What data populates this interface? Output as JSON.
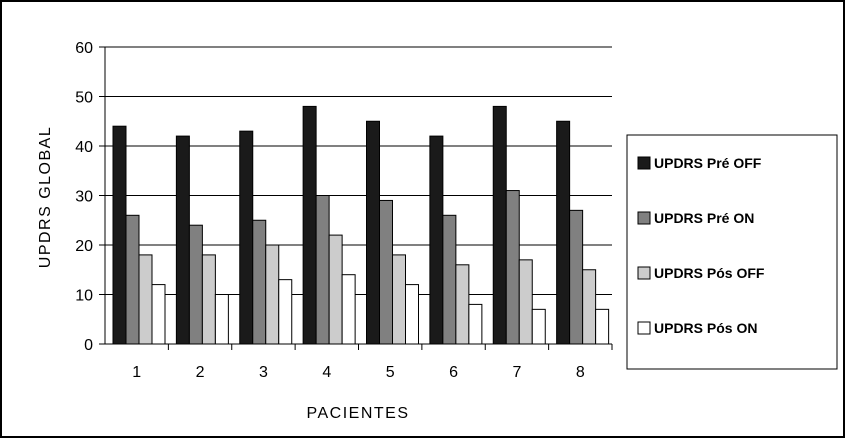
{
  "chart_data": {
    "type": "bar",
    "categories": [
      "1",
      "2",
      "3",
      "4",
      "5",
      "6",
      "7",
      "8"
    ],
    "series": [
      {
        "name": "UPDRS Pré OFF",
        "color": "#1a1a1a",
        "values": [
          44,
          42,
          43,
          48,
          45,
          42,
          48,
          45
        ]
      },
      {
        "name": "UPDRS Pré ON",
        "color": "#808080",
        "values": [
          26,
          24,
          25,
          30,
          29,
          26,
          31,
          27
        ]
      },
      {
        "name": "UPDRS Pós OFF",
        "color": "#cccccc",
        "values": [
          18,
          18,
          20,
          22,
          18,
          16,
          17,
          15
        ]
      },
      {
        "name": "UPDRS Pós ON",
        "color": "#ffffff",
        "values": [
          12,
          10,
          13,
          14,
          12,
          8,
          7,
          7
        ]
      }
    ],
    "xlabel": "PACIENTES",
    "ylabel": "UPDRS GLOBAL",
    "ylim": [
      0,
      60
    ],
    "yticks": [
      "0",
      "10",
      "20",
      "30",
      "40",
      "50",
      "60"
    ],
    "grid": true,
    "legend": "right"
  }
}
